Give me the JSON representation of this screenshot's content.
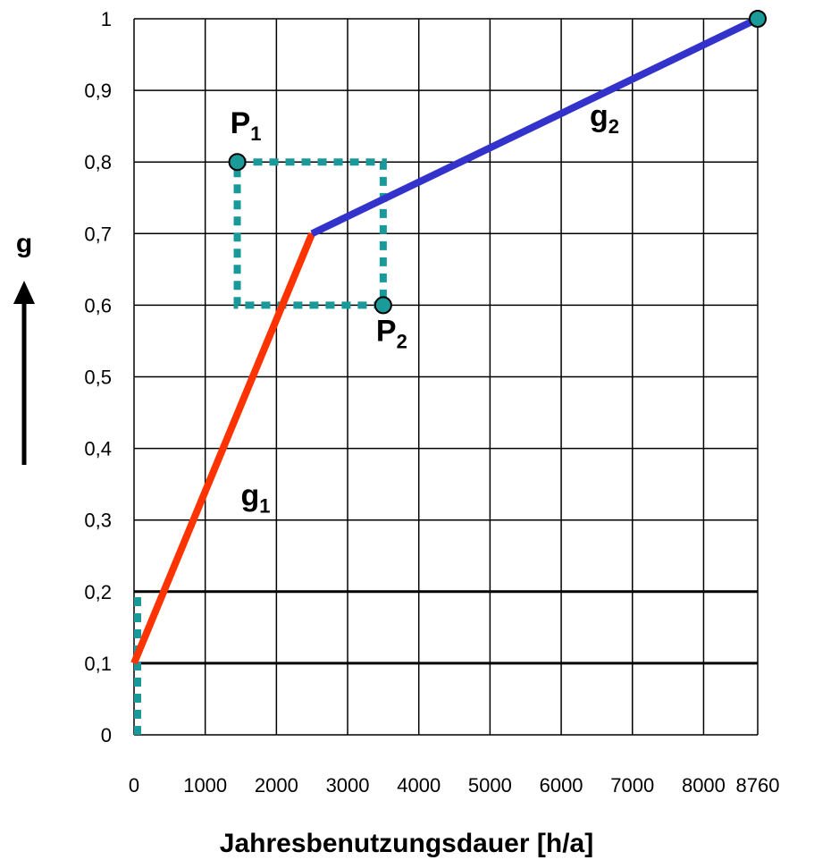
{
  "chart_data": {
    "type": "line",
    "xlabel": "Jahresbenutzungsdauer [h/a]",
    "ylabel": "g",
    "xlim": [
      0,
      8760
    ],
    "ylim": [
      0,
      1
    ],
    "x_ticks": [
      0,
      1000,
      2000,
      3000,
      4000,
      5000,
      6000,
      7000,
      8000,
      8760
    ],
    "x_tick_labels": [
      "0",
      "1000",
      "2000",
      "3000",
      "4000",
      "5000",
      "6000",
      "7000",
      "8000",
      "8760"
    ],
    "y_ticks": [
      0,
      0.1,
      0.2,
      0.3,
      0.4,
      0.5,
      0.6,
      0.7,
      0.8,
      0.9,
      1
    ],
    "y_tick_labels": [
      "0",
      "0,1",
      "0,2",
      "0,3",
      "0,4",
      "0,5",
      "0,6",
      "0,7",
      "0,8",
      "0,9",
      "1"
    ],
    "grid": true,
    "series": [
      {
        "name": "g1",
        "color": "#ff3300",
        "x": [
          0,
          2500
        ],
        "y": [
          0.1,
          0.7
        ]
      },
      {
        "name": "g2",
        "color": "#3333cc",
        "x": [
          2500,
          8760
        ],
        "y": [
          0.7,
          1.0
        ]
      }
    ],
    "points": [
      {
        "name": "P1",
        "x": 1450,
        "y": 0.8
      },
      {
        "name": "P2",
        "x": 3500,
        "y": 0.6
      },
      {
        "name": "end",
        "x": 8760,
        "y": 1.0
      }
    ],
    "rectangle": {
      "x": [
        1450,
        3500
      ],
      "y": [
        0.6,
        0.8
      ],
      "color": "#199999",
      "style": "dotted"
    },
    "marker_line": {
      "x": 50,
      "y": [
        0,
        0.2
      ],
      "color": "#199999",
      "style": "dotted"
    },
    "labels": [
      {
        "text": "g",
        "sub": "1",
        "x": 1500,
        "y": 0.32
      },
      {
        "text": "g",
        "sub": "2",
        "x": 6400,
        "y": 0.85
      },
      {
        "text": "P",
        "sub": "1",
        "x": 1350,
        "y": 0.84
      },
      {
        "text": "P",
        "sub": "2",
        "x": 3400,
        "y": 0.55
      }
    ]
  }
}
